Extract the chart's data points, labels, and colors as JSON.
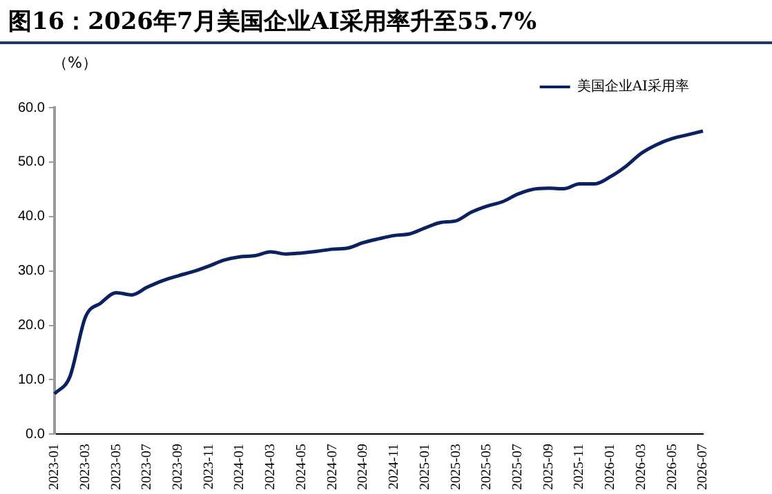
{
  "chart_data": {
    "type": "line",
    "title": "图16：2026年7月美国企业AI采用率升至55.7%",
    "ylabel": "（%）",
    "categories": [
      "2023-01",
      null,
      "2023-03",
      null,
      "2023-05",
      null,
      "2023-07",
      null,
      "2023-09",
      null,
      "2023-11",
      null,
      "2024-01",
      null,
      "2024-03",
      null,
      "2024-05",
      null,
      "2024-07",
      null,
      "2024-09",
      null,
      "2024-11",
      null,
      "2025-01",
      null,
      "2025-03",
      null,
      "2025-05",
      null,
      "2025-07",
      null,
      "2025-09",
      null,
      "2025-11",
      null,
      "2026-01",
      null,
      "2026-03",
      null,
      "2026-05",
      null,
      "2026-07"
    ],
    "series": [
      {
        "name": "美国企业AI采用率",
        "color": "#0c2260",
        "values": [
          7.4,
          10.6,
          21.5,
          24.1,
          26.0,
          25.6,
          27.0,
          28.2,
          29.1,
          29.9,
          30.9,
          32.0,
          32.6,
          32.8,
          33.5,
          33.1,
          33.3,
          33.6,
          34.0,
          34.2,
          35.2,
          35.9,
          36.5,
          36.8,
          37.9,
          38.9,
          39.2,
          40.8,
          41.9,
          42.7,
          44.1,
          45.0,
          45.2,
          45.1,
          46.0,
          46.0,
          47.3,
          49.2,
          51.6,
          53.2,
          54.3,
          55.0,
          55.7
        ]
      }
    ],
    "ylim": [
      0,
      60
    ],
    "yticks": [
      {
        "value": 0,
        "label": "0.0"
      },
      {
        "value": 10,
        "label": "10.0"
      },
      {
        "value": 20,
        "label": "20.0"
      },
      {
        "value": 30,
        "label": "30.0"
      },
      {
        "value": 40,
        "label": "40.0"
      },
      {
        "value": 50,
        "label": "50.0"
      },
      {
        "value": 60,
        "label": "60.0"
      }
    ],
    "grid": false,
    "legend": "top right",
    "marker": "none",
    "line_style": "solid"
  }
}
